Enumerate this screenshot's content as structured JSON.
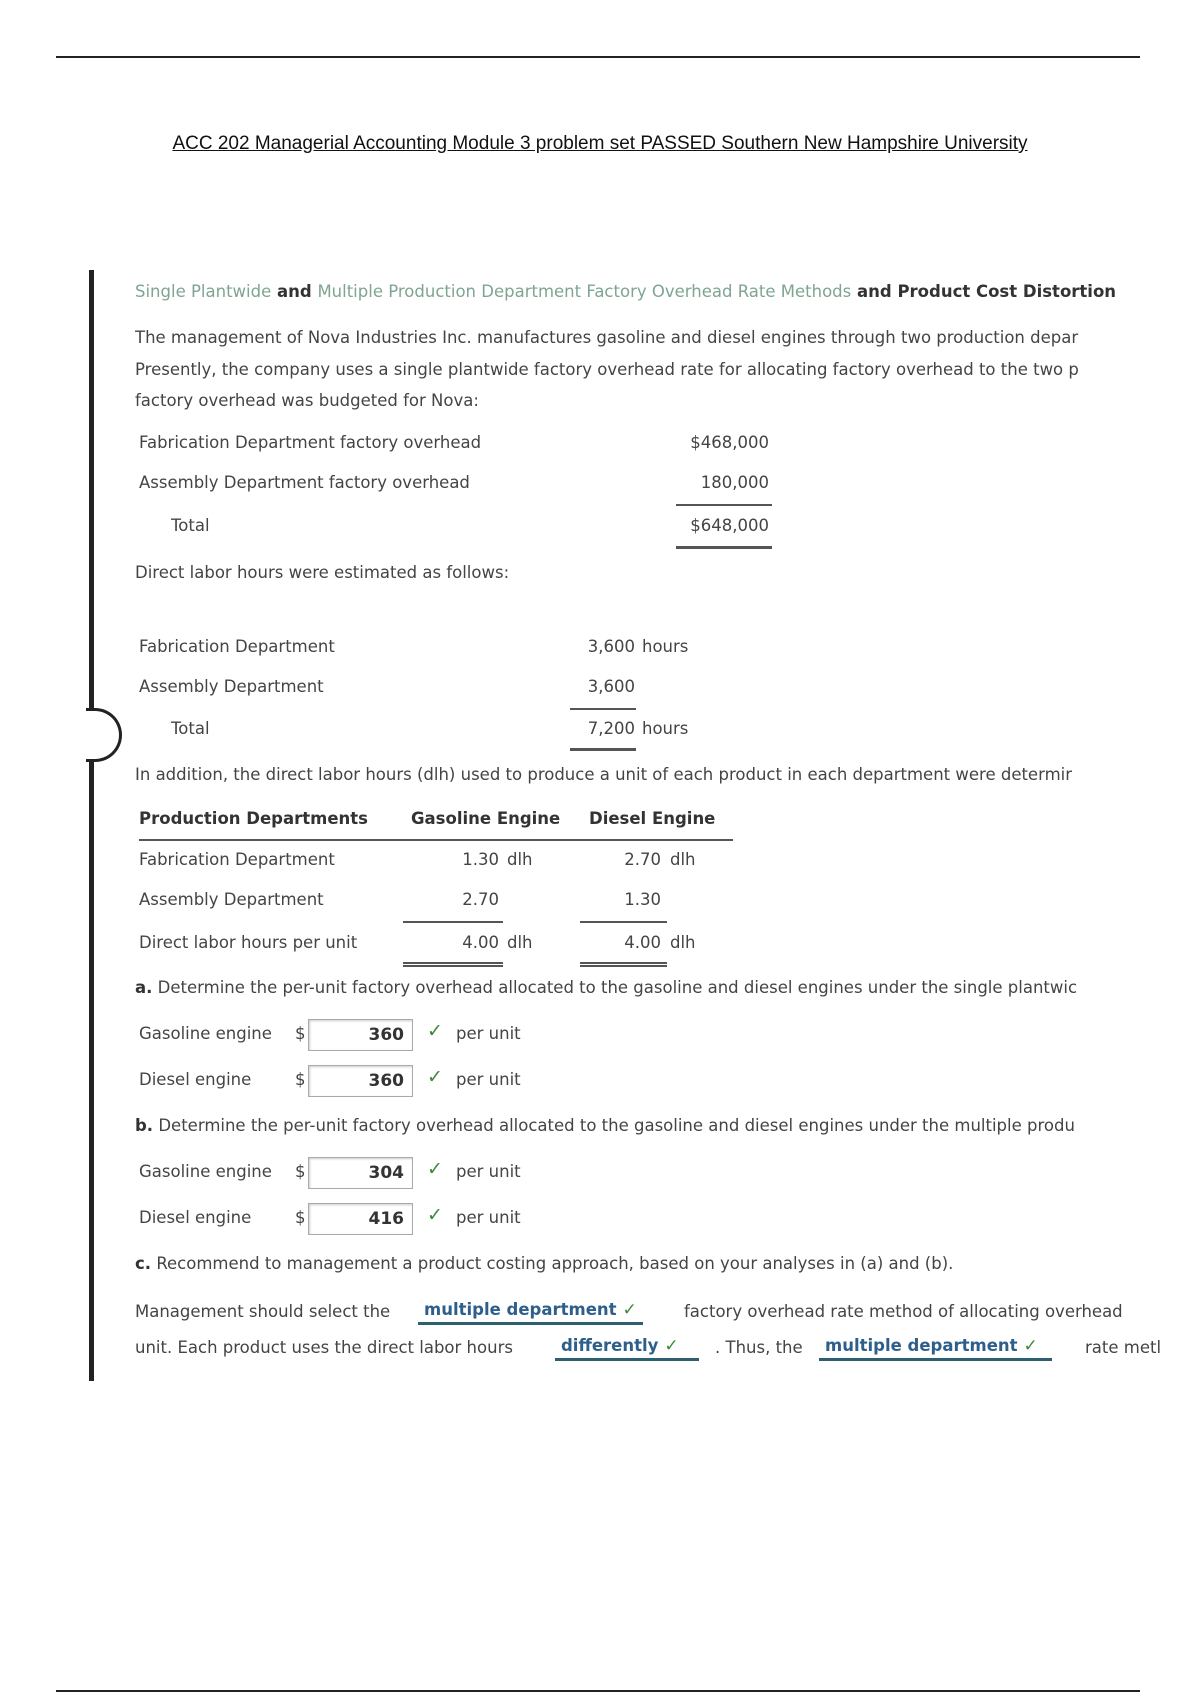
{
  "title": "ACC 202 Managerial Accounting Module 3 problem set PASSED Southern New Hampshire University",
  "heading": {
    "part1": "Single Plantwide",
    "and1": " and ",
    "part2": "Multiple Production Department Factory Overhead Rate Methods",
    "and2": " and Product Cost Distortion"
  },
  "intro": [
    "The management of Nova Industries Inc. manufactures gasoline and diesel engines through two production depar",
    "Presently, the company uses a single plantwide factory overhead rate for allocating factory overhead to the two p",
    "factory overhead was budgeted for Nova:"
  ],
  "overhead_table": [
    {
      "label": "Fabrication Department factory overhead",
      "amount": "$468,000"
    },
    {
      "label": "Assembly Department factory overhead",
      "amount": "180,000"
    },
    {
      "label": "Total",
      "amount": "$648,000"
    }
  ],
  "dlh_intro": "Direct labor hours were estimated as follows:",
  "hours_table": [
    {
      "label": "Fabrication Department",
      "value": "3,600",
      "unit": "hours"
    },
    {
      "label": "Assembly Department",
      "value": "3,600",
      "unit": ""
    },
    {
      "label": "Total",
      "value": "7,200",
      "unit": "hours"
    }
  ],
  "addition_text": "In addition, the direct labor hours (dlh) used to produce a unit of each product in each department were determir",
  "product_table": {
    "headers": [
      "Production Departments",
      "Gasoline Engine",
      "Diesel Engine"
    ],
    "rows": [
      {
        "label": "Fabrication Department",
        "gas": "1.30",
        "gas_unit": "dlh",
        "diesel": "2.70",
        "diesel_unit": "dlh"
      },
      {
        "label": "Assembly Department",
        "gas": "2.70",
        "gas_unit": "",
        "diesel": "1.30",
        "diesel_unit": ""
      },
      {
        "label": "Direct labor hours per unit",
        "gas": "4.00",
        "gas_unit": "dlh",
        "diesel": "4.00",
        "diesel_unit": "dlh"
      }
    ]
  },
  "part_a": {
    "letter": "a.",
    "question": "Determine the per-unit factory overhead allocated to the gasoline and diesel engines under the single plantwic",
    "rows": [
      {
        "label": "Gasoline engine",
        "currency": "$",
        "value": "360",
        "unit": "per unit"
      },
      {
        "label": "Diesel engine",
        "currency": "$",
        "value": "360",
        "unit": "per unit"
      }
    ]
  },
  "part_b": {
    "letter": "b.",
    "question": "Determine the per-unit factory overhead allocated to the gasoline and diesel engines under the multiple produ",
    "rows": [
      {
        "label": "Gasoline engine",
        "currency": "$",
        "value": "304",
        "unit": "per unit"
      },
      {
        "label": "Diesel engine",
        "currency": "$",
        "value": "416",
        "unit": "per unit"
      }
    ]
  },
  "part_c": {
    "letter": "c.",
    "question": "Recommend to management a product costing approach, based on your analyses in (a) and (b).",
    "line1_pre": "Management should select the",
    "select1": "multiple department",
    "line1_post": "factory overhead rate method of allocating overhead",
    "line2_pre": "unit. Each product uses the direct labor hours",
    "select2": "differently",
    "line2_mid": ". Thus, the",
    "select3": "multiple department",
    "line2_post": "rate metl"
  },
  "check_glyph": "✓",
  "colors": {
    "heading_link": "#7fa592",
    "dropdown": "#2d5f8a",
    "check": "#3a8a3a"
  }
}
